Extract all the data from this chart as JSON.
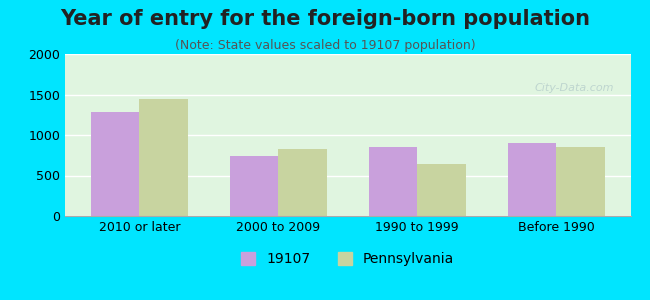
{
  "title": "Year of entry for the foreign-born population",
  "subtitle": "(Note: State values scaled to 19107 population)",
  "categories": [
    "2010 or later",
    "2000 to 2009",
    "1990 to 1999",
    "Before 1990"
  ],
  "values_19107": [
    1284,
    739,
    851,
    906
  ],
  "values_pennsylvania": [
    1449,
    829,
    641,
    851
  ],
  "color_19107": "#c9a0dc",
  "color_pennsylvania": "#c8d4a0",
  "ylim": [
    0,
    2000
  ],
  "yticks": [
    0,
    500,
    1000,
    1500,
    2000
  ],
  "background_color": "#e0f5e0",
  "outer_background": "#00e5ff",
  "legend_label_1": "19107",
  "legend_label_2": "Pennsylvania",
  "bar_width": 0.35,
  "title_fontsize": 15,
  "subtitle_fontsize": 9,
  "tick_fontsize": 9,
  "legend_fontsize": 10
}
